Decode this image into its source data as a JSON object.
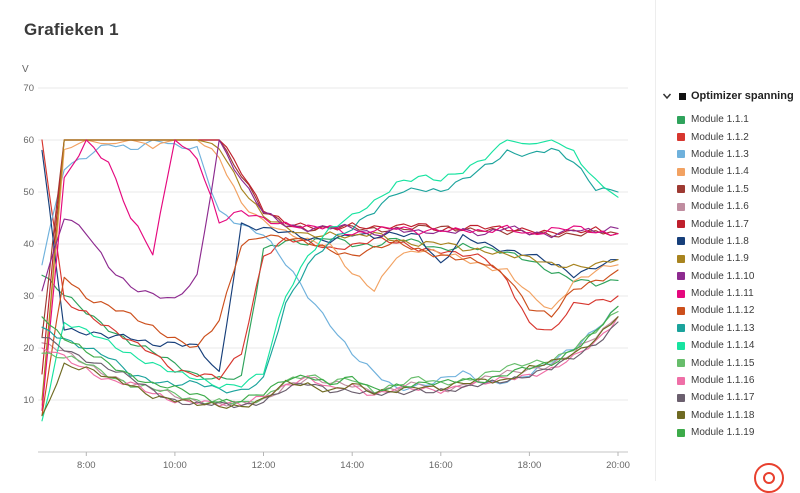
{
  "page": {
    "title": "Grafieken 1"
  },
  "legend": {
    "title": "Optimizer spanning"
  },
  "chart_data": {
    "type": "line",
    "title": "",
    "xlabel": "",
    "ylabel": "V",
    "ylim": [
      0,
      70
    ],
    "yticks": [
      10,
      20,
      30,
      40,
      50,
      60,
      70
    ],
    "grid": true,
    "legend_position": "right",
    "x": [
      "7:00",
      "7:30",
      "8:00",
      "8:30",
      "9:00",
      "9:30",
      "10:00",
      "10:30",
      "11:00",
      "11:30",
      "12:00",
      "12:30",
      "13:00",
      "13:30",
      "14:00",
      "14:30",
      "15:00",
      "15:30",
      "16:00",
      "16:30",
      "17:00",
      "17:30",
      "18:00",
      "18:30",
      "19:00",
      "19:30",
      "20:00"
    ],
    "xticks": [
      "8:00",
      "10:00",
      "12:00",
      "14:00",
      "16:00",
      "18:00",
      "20:00"
    ],
    "series": [
      {
        "name": "Module 1.1.1",
        "color": "#2fa35c",
        "values": [
          34,
          30,
          27,
          24,
          21,
          19,
          17,
          15,
          14,
          14,
          39,
          41,
          40,
          41,
          40,
          40,
          41,
          40,
          39,
          40,
          39,
          38,
          37,
          35,
          33,
          32,
          33
        ]
      },
      {
        "name": "Module 1.1.2",
        "color": "#d7372f",
        "values": [
          60,
          29,
          27,
          24,
          21,
          19,
          16,
          15,
          14,
          19,
          38,
          41,
          40,
          39,
          40,
          41,
          40,
          39,
          39,
          38,
          37,
          33,
          25,
          23,
          28,
          29,
          30
        ]
      },
      {
        "name": "Module 1.1.3",
        "color": "#6fb1dc",
        "values": [
          36,
          55,
          57,
          59,
          58,
          60,
          59,
          58,
          46,
          44,
          42,
          36,
          30,
          25,
          19,
          15,
          12,
          13,
          14,
          15,
          13,
          14,
          15,
          17,
          20,
          24,
          28
        ]
      },
      {
        "name": "Module 1.1.4",
        "color": "#f2a262",
        "values": [
          9,
          58,
          60,
          59,
          60,
          59,
          60,
          60,
          57,
          48,
          44,
          42,
          41,
          40,
          34,
          31,
          38,
          39,
          38,
          37,
          36,
          35,
          30,
          27,
          33,
          35,
          36
        ]
      },
      {
        "name": "Module 1.1.5",
        "color": "#9e3a32",
        "values": [
          22,
          60,
          60,
          60,
          60,
          60,
          60,
          60,
          60,
          53,
          46,
          44,
          43,
          43,
          43,
          43,
          43,
          43,
          43,
          43,
          43,
          42,
          42,
          42,
          42,
          42,
          42
        ]
      },
      {
        "name": "Module 1.1.6",
        "color": "#c08da0",
        "values": [
          21,
          19,
          17,
          15,
          13,
          12,
          11,
          10,
          9,
          9,
          10,
          13,
          14,
          13,
          13,
          12,
          12,
          13,
          12,
          13,
          14,
          15,
          16,
          17,
          19,
          22,
          26
        ]
      },
      {
        "name": "Module 1.1.7",
        "color": "#bf1f2c",
        "values": [
          15,
          60,
          60,
          60,
          60,
          60,
          60,
          60,
          60,
          54,
          47,
          44,
          43,
          43,
          44,
          43,
          43,
          44,
          43,
          43,
          43,
          43,
          43,
          42,
          42,
          43,
          42
        ]
      },
      {
        "name": "Module 1.1.8",
        "color": "#173f7a",
        "values": [
          58,
          24,
          23,
          22,
          22,
          21,
          21,
          20,
          15,
          44,
          43,
          42,
          41,
          41,
          42,
          41,
          42,
          42,
          36,
          41,
          40,
          39,
          38,
          36,
          34,
          36,
          37
        ]
      },
      {
        "name": "Module 1.1.9",
        "color": "#a8841f",
        "values": [
          10,
          60,
          60,
          60,
          60,
          60,
          60,
          60,
          59,
          51,
          45,
          43,
          42,
          42,
          41,
          42,
          41,
          40,
          40,
          39,
          39,
          38,
          37,
          36,
          36,
          36,
          37
        ]
      },
      {
        "name": "Module 1.1.10",
        "color": "#8d2a8f",
        "values": [
          31,
          45,
          42,
          36,
          32,
          30,
          29,
          34,
          60,
          52,
          46,
          44,
          43,
          43,
          43,
          42,
          43,
          42,
          42,
          43,
          42,
          43,
          42,
          42,
          43,
          42,
          43
        ]
      },
      {
        "name": "Module 1.1.11",
        "color": "#e5087e",
        "values": [
          8,
          52,
          60,
          56,
          45,
          38,
          60,
          57,
          44,
          46,
          45,
          44,
          43,
          43,
          42,
          43,
          43,
          42,
          43,
          43,
          42,
          43,
          42,
          43,
          43,
          42,
          42
        ]
      },
      {
        "name": "Module 1.1.12",
        "color": "#cc4f1c",
        "values": [
          7,
          34,
          30,
          28,
          26,
          24,
          22,
          20,
          25,
          40,
          42,
          41,
          40,
          39,
          38,
          39,
          40,
          39,
          38,
          37,
          36,
          34,
          28,
          26,
          31,
          33,
          35
        ]
      },
      {
        "name": "Module 1.1.13",
        "color": "#1ba39c",
        "values": [
          24,
          22,
          20,
          18,
          15,
          14,
          13,
          13,
          12,
          12,
          14,
          28,
          36,
          41,
          43,
          46,
          50,
          51,
          50,
          52,
          55,
          58,
          57,
          58,
          56,
          51,
          50
        ]
      },
      {
        "name": "Module 1.1.14",
        "color": "#17e3a0",
        "values": [
          6,
          25,
          23,
          21,
          19,
          17,
          15,
          14,
          13,
          13,
          15,
          30,
          38,
          43,
          45,
          48,
          52,
          53,
          52,
          54,
          57,
          60,
          59,
          60,
          58,
          52,
          49
        ]
      },
      {
        "name": "Module 1.1.15",
        "color": "#67bd6b",
        "values": [
          19,
          18,
          17,
          15,
          13,
          12,
          11,
          10,
          10,
          9,
          10,
          14,
          15,
          13,
          14,
          12,
          13,
          14,
          13,
          14,
          15,
          16,
          17,
          18,
          20,
          23,
          27
        ]
      },
      {
        "name": "Module 1.1.16",
        "color": "#ef6fa7",
        "values": [
          20,
          18,
          16,
          14,
          13,
          11,
          10,
          10,
          9,
          9,
          11,
          13,
          14,
          12,
          13,
          11,
          12,
          12,
          12,
          13,
          13,
          14,
          15,
          16,
          18,
          21,
          26
        ]
      },
      {
        "name": "Module 1.1.17",
        "color": "#6b5f6e",
        "values": [
          22,
          20,
          18,
          16,
          14,
          12,
          10,
          9,
          9,
          9,
          10,
          12,
          13,
          12,
          12,
          11,
          11,
          12,
          12,
          12,
          13,
          14,
          15,
          16,
          18,
          21,
          25
        ]
      },
      {
        "name": "Module 1.1.18",
        "color": "#6f6a22",
        "values": [
          7,
          17,
          16,
          14,
          13,
          11,
          10,
          9,
          9,
          9,
          10,
          13,
          13,
          12,
          13,
          11,
          12,
          13,
          12,
          13,
          14,
          14,
          16,
          17,
          19,
          22,
          26
        ]
      },
      {
        "name": "Module 1.1.19",
        "color": "#3dab4a",
        "values": [
          26,
          22,
          19,
          17,
          15,
          13,
          12,
          11,
          10,
          10,
          11,
          14,
          15,
          13,
          14,
          12,
          13,
          13,
          13,
          14,
          14,
          15,
          16,
          17,
          20,
          23,
          28
        ]
      }
    ]
  }
}
